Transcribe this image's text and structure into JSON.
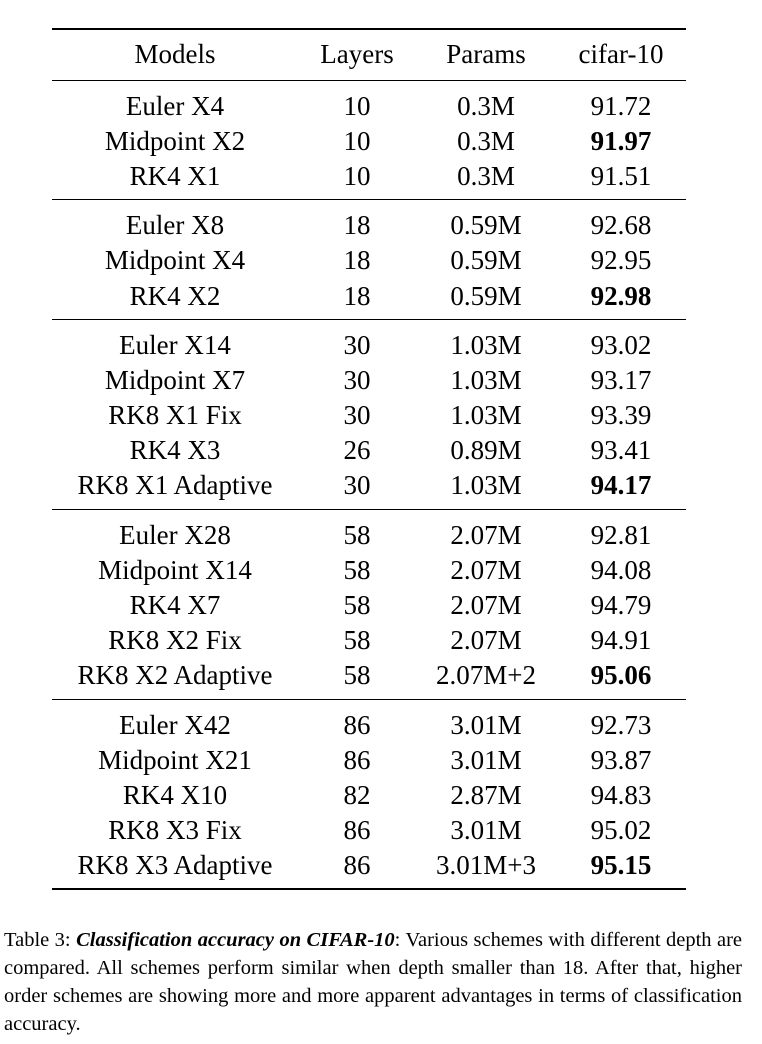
{
  "table": {
    "headers": [
      "Models",
      "Layers",
      "Params",
      "cifar-10"
    ],
    "groups": [
      {
        "rows": [
          {
            "model": "Euler X4",
            "layers": "10",
            "params": "0.3M",
            "acc": "91.72",
            "best": false
          },
          {
            "model": "Midpoint X2",
            "layers": "10",
            "params": "0.3M",
            "acc": "91.97",
            "best": true
          },
          {
            "model": "RK4 X1",
            "layers": "10",
            "params": "0.3M",
            "acc": "91.51",
            "best": false
          }
        ]
      },
      {
        "rows": [
          {
            "model": "Euler X8",
            "layers": "18",
            "params": "0.59M",
            "acc": "92.68",
            "best": false
          },
          {
            "model": "Midpoint X4",
            "layers": "18",
            "params": "0.59M",
            "acc": "92.95",
            "best": false
          },
          {
            "model": "RK4 X2",
            "layers": "18",
            "params": "0.59M",
            "acc": "92.98",
            "best": true
          }
        ]
      },
      {
        "rows": [
          {
            "model": "Euler X14",
            "layers": "30",
            "params": "1.03M",
            "acc": "93.02",
            "best": false
          },
          {
            "model": "Midpoint X7",
            "layers": "30",
            "params": "1.03M",
            "acc": "93.17",
            "best": false
          },
          {
            "model": "RK8 X1 Fix",
            "layers": "30",
            "params": "1.03M",
            "acc": "93.39",
            "best": false
          },
          {
            "model": "RK4 X3",
            "layers": "26",
            "params": "0.89M",
            "acc": "93.41",
            "best": false
          },
          {
            "model": "RK8 X1 Adaptive",
            "layers": "30",
            "params": "1.03M",
            "acc": "94.17",
            "best": true
          }
        ]
      },
      {
        "rows": [
          {
            "model": "Euler X28",
            "layers": "58",
            "params": "2.07M",
            "acc": "92.81",
            "best": false
          },
          {
            "model": "Midpoint X14",
            "layers": "58",
            "params": "2.07M",
            "acc": "94.08",
            "best": false
          },
          {
            "model": "RK4 X7",
            "layers": "58",
            "params": "2.07M",
            "acc": "94.79",
            "best": false
          },
          {
            "model": "RK8 X2 Fix",
            "layers": "58",
            "params": "2.07M",
            "acc": "94.91",
            "best": false
          },
          {
            "model": "RK8 X2 Adaptive",
            "layers": "58",
            "params": "2.07M+2",
            "acc": "95.06",
            "best": true
          }
        ]
      },
      {
        "rows": [
          {
            "model": "Euler X42",
            "layers": "86",
            "params": "3.01M",
            "acc": "92.73",
            "best": false
          },
          {
            "model": "Midpoint X21",
            "layers": "86",
            "params": "3.01M",
            "acc": "93.87",
            "best": false
          },
          {
            "model": "RK4 X10",
            "layers": "82",
            "params": "2.87M",
            "acc": "94.83",
            "best": false
          },
          {
            "model": "RK8 X3 Fix",
            "layers": "86",
            "params": "3.01M",
            "acc": "95.02",
            "best": false
          },
          {
            "model": "RK8 X3 Adaptive",
            "layers": "86",
            "params": "3.01M+3",
            "acc": "95.15",
            "best": true
          }
        ]
      }
    ]
  },
  "caption": {
    "label": "Table 3: ",
    "emphasis": "Classification accuracy on CIFAR-10",
    "text": ": Various schemes with different depth are compared.  All schemes perform similar when depth smaller than 18.  After that, higher order schemes are showing more and more apparent advantages in terms of classification accuracy."
  }
}
